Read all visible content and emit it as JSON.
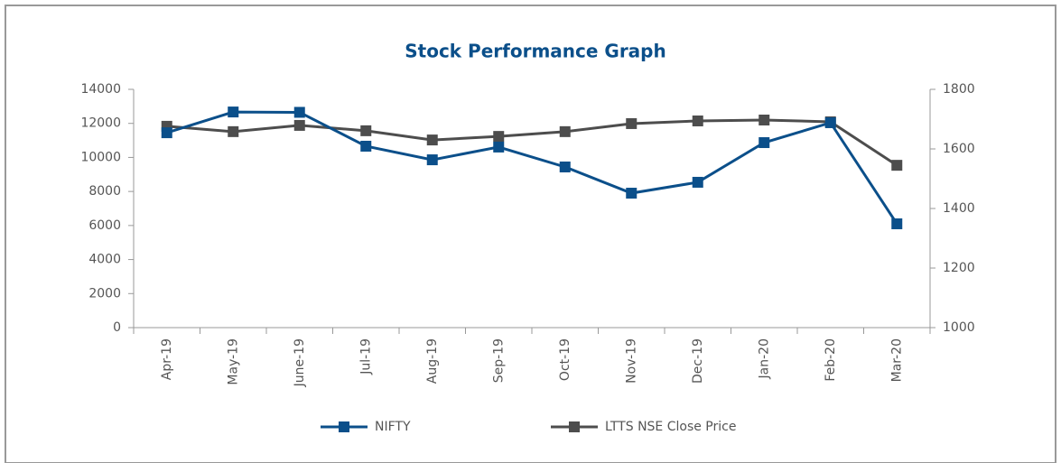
{
  "chart_data": {
    "type": "line",
    "title": "Stock Performance Graph",
    "categories": [
      "Apr-19",
      "May-19",
      "June-19",
      "Jul-19",
      "Aug-19",
      "Sep-19",
      "Oct-19",
      "Nov-19",
      "Dec-19",
      "Jan-20",
      "Feb-20",
      "Mar-20"
    ],
    "series": [
      {
        "name": "NIFTY",
        "color": "#0b4f8a",
        "values": [
          11450,
          12670,
          12650,
          10660,
          9860,
          10610,
          9440,
          7900,
          8540,
          10870,
          12040,
          6100
        ]
      },
      {
        "name": "LTTS NSE Close Price",
        "color": "#4d4d4d",
        "axis": "y2",
        "values": [
          1676,
          1658,
          1679,
          1661,
          1630,
          1642,
          1658,
          1685,
          1694,
          1697,
          1691,
          1545
        ]
      }
    ],
    "ylim": [
      0,
      14000
    ],
    "yticks": [
      0,
      2000,
      4000,
      6000,
      8000,
      10000,
      12000,
      14000
    ],
    "y2lim": [
      1000,
      1800
    ],
    "y2ticks": [
      1000,
      1200,
      1400,
      1600,
      1800
    ]
  }
}
